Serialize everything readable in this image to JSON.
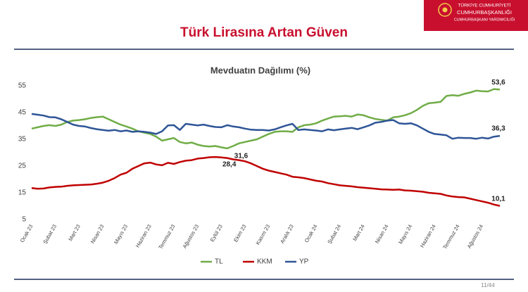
{
  "header": {
    "line1": "TÜRKİYE CUMHURİYETİ",
    "line2": "CUMHURBAŞKANLIĞI",
    "line3": "CUMHURBAŞKANI YARDIMCILIĞI",
    "title": "Türk Lirasına Artan Güven"
  },
  "footer": {
    "page": "11/44"
  },
  "chart_data": {
    "type": "line",
    "title": "Mevduatın Dağılımı (%)",
    "categories": [
      "Ocak 23",
      null,
      null,
      null,
      "Şubat 23",
      null,
      null,
      null,
      "Mart 23",
      null,
      null,
      null,
      "Nisan 23",
      null,
      null,
      null,
      "Mayıs 23",
      null,
      null,
      null,
      "Haziran 23",
      null,
      null,
      null,
      "Temmuz 23",
      null,
      null,
      null,
      "Ağustos 23",
      null,
      null,
      null,
      "Eylül 23",
      null,
      null,
      null,
      "Ekim 23",
      null,
      null,
      null,
      "Kasım 23",
      null,
      null,
      null,
      "Aralık 23",
      null,
      null,
      null,
      "Ocak 24",
      null,
      null,
      null,
      "Şubat 24",
      null,
      null,
      null,
      "Mart 24",
      null,
      null,
      null,
      "Nisan 24",
      null,
      null,
      null,
      "Mayıs 24",
      null,
      null,
      null,
      "Haziran 24",
      null,
      null,
      null,
      "Temmuz 24",
      null,
      null,
      null,
      "Ağustos 24",
      null,
      null,
      null
    ],
    "series": [
      {
        "name": "TL",
        "color": "#70ad47",
        "values": [
          39,
          39.5,
          40,
          40.3,
          40,
          40.5,
          41.5,
          42,
          42.2,
          42.5,
          43,
          43.3,
          43.5,
          42.5,
          41.5,
          40.5,
          39.8,
          39,
          38,
          37.5,
          37,
          36,
          34.5,
          35,
          35.5,
          34,
          33.5,
          33.8,
          33,
          32.5,
          32.3,
          32.5,
          32,
          31.6,
          32.5,
          33.5,
          34,
          34.5,
          35,
          36,
          37,
          37.8,
          38,
          38,
          37.8,
          39.5,
          40.3,
          40.5,
          41,
          42,
          42.8,
          43.5,
          43.6,
          43.8,
          43.5,
          44.3,
          44,
          43.2,
          42.6,
          42.3,
          42,
          43.2,
          43.5,
          44,
          44.8,
          46,
          47.5,
          48.5,
          48.7,
          49,
          51.2,
          51.5,
          51.3,
          52,
          52.5,
          53.2,
          53,
          52.9,
          53.8,
          53.6
        ],
        "value_labels": [
          null,
          null,
          null,
          null,
          null,
          null,
          null,
          null,
          null,
          null,
          null,
          null,
          null,
          null,
          null,
          null,
          null,
          null,
          null,
          null,
          null,
          null,
          null,
          null,
          null,
          null,
          null,
          null,
          null,
          null,
          null,
          null,
          null,
          "31,6",
          null,
          null,
          null,
          null,
          null,
          null,
          null,
          null,
          null,
          null,
          null,
          null,
          null,
          null,
          null,
          null,
          null,
          null,
          null,
          null,
          null,
          null,
          null,
          null,
          null,
          null,
          null,
          null,
          null,
          null,
          null,
          null,
          null,
          null,
          null,
          null,
          null,
          null,
          null,
          null,
          null,
          null,
          null,
          null,
          null,
          "53,6"
        ]
      },
      {
        "name": "KKM",
        "color": "#c00000",
        "values": [
          16.8,
          16.5,
          16.6,
          17,
          17.2,
          17.3,
          17.6,
          17.8,
          17.9,
          18,
          18.1,
          18.4,
          18.8,
          19.5,
          20.5,
          21.8,
          22.5,
          24,
          25,
          26,
          26.3,
          25.6,
          25.3,
          26.2,
          25.8,
          26.5,
          27,
          27.2,
          27.8,
          28,
          28.3,
          28.4,
          28.2,
          28,
          27.5,
          27.2,
          26.8,
          26,
          25,
          24,
          23.3,
          22.8,
          22.3,
          21.8,
          21,
          20.8,
          20.5,
          20,
          19.5,
          19.2,
          18.6,
          18.2,
          17.8,
          17.6,
          17.4,
          17.1,
          16.9,
          16.7,
          16.5,
          16.3,
          16.2,
          16.1,
          16.2,
          15.9,
          15.8,
          15.6,
          15.4,
          15,
          14.8,
          14.6,
          14,
          13.6,
          13.4,
          13.3,
          12.8,
          12.3,
          11.8,
          11.3,
          10.6,
          10.1
        ],
        "value_labels": [
          null,
          null,
          null,
          null,
          null,
          null,
          null,
          null,
          null,
          null,
          null,
          null,
          null,
          null,
          null,
          null,
          null,
          null,
          null,
          null,
          null,
          null,
          null,
          null,
          null,
          null,
          null,
          null,
          null,
          null,
          null,
          "28,4",
          null,
          null,
          null,
          null,
          null,
          null,
          null,
          null,
          null,
          null,
          null,
          null,
          null,
          null,
          null,
          null,
          null,
          null,
          null,
          null,
          null,
          null,
          null,
          null,
          null,
          null,
          null,
          null,
          null,
          null,
          null,
          null,
          null,
          null,
          null,
          null,
          null,
          null,
          null,
          null,
          null,
          null,
          null,
          null,
          null,
          null,
          null,
          "10,1"
        ]
      },
      {
        "name": "YP",
        "color": "#2f5597",
        "values": [
          44.5,
          44.2,
          43.9,
          43.3,
          43.2,
          42.5,
          41.5,
          40.5,
          40,
          39.8,
          39.2,
          38.8,
          38.5,
          38.2,
          38.5,
          38,
          38.3,
          37.8,
          38,
          37.8,
          37.5,
          37,
          38,
          40.2,
          40.3,
          38.5,
          40.8,
          40.5,
          40.2,
          40.5,
          40,
          39.6,
          39.5,
          40.3,
          39.8,
          39.5,
          39,
          38.6,
          38.5,
          38.5,
          38.3,
          38.7,
          39.5,
          40.2,
          40.8,
          38.5,
          38.7,
          38.5,
          38.3,
          38,
          38.7,
          38.4,
          38.7,
          39,
          39.3,
          38.8,
          39.5,
          40.2,
          41.2,
          41.5,
          42,
          42.2,
          41,
          40.8,
          41,
          40.2,
          39,
          37.8,
          37,
          36.8,
          36.5,
          35.2,
          35.6,
          35.5,
          35.5,
          35.2,
          35.6,
          35.3,
          36,
          36.3
        ],
        "value_labels": [
          null,
          null,
          null,
          null,
          null,
          null,
          null,
          null,
          null,
          null,
          null,
          null,
          null,
          null,
          null,
          null,
          null,
          null,
          null,
          null,
          null,
          null,
          null,
          null,
          null,
          null,
          null,
          null,
          null,
          null,
          null,
          null,
          null,
          null,
          null,
          null,
          null,
          null,
          null,
          null,
          null,
          null,
          null,
          null,
          null,
          null,
          null,
          null,
          null,
          null,
          null,
          null,
          null,
          null,
          null,
          null,
          null,
          null,
          null,
          null,
          null,
          null,
          null,
          null,
          null,
          null,
          null,
          null,
          null,
          null,
          null,
          null,
          null,
          null,
          null,
          null,
          null,
          null,
          null,
          "36,3"
        ]
      }
    ],
    "ylim": [
      5,
      55
    ],
    "yticks": [
      5,
      15,
      25,
      35,
      45,
      55
    ],
    "grid": false,
    "legend": "bottom"
  }
}
